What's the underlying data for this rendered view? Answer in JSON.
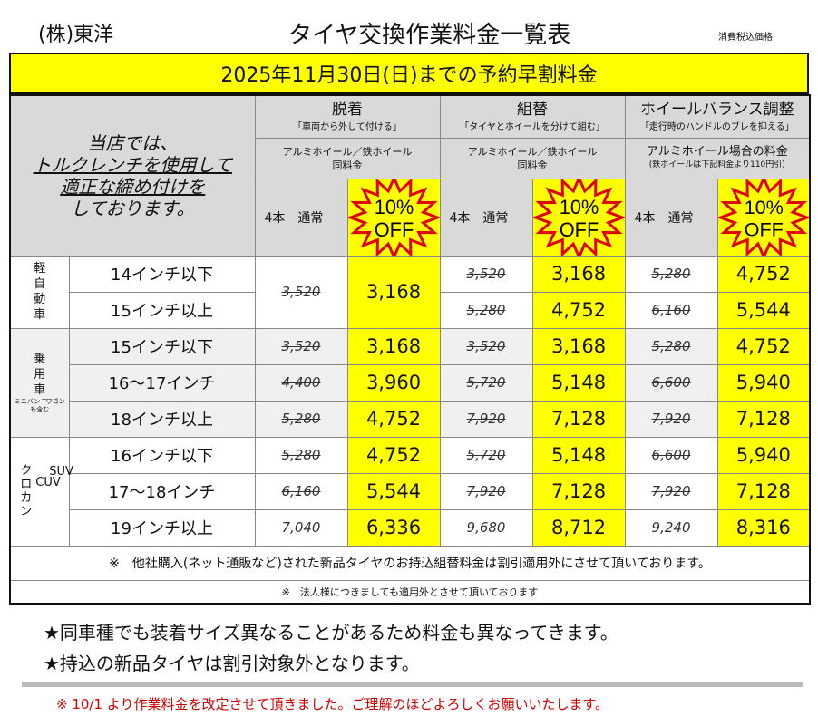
{
  "header": {
    "company": "(株)東洋",
    "title": "タイヤ交換作業料金一覧表",
    "tax_note": "消費税込価格"
  },
  "banner": "2025年11月30日(日)までの予約早割料金",
  "left_note": {
    "line1": "当店では、",
    "line2": "トルクレンチを使用して",
    "line3": "適正な締め付けを",
    "line4": "しております。"
  },
  "groups": [
    {
      "name": "脱着",
      "desc": "「車両から外して付ける」",
      "wheel": "アルミホイール／鉄ホイール",
      "wheel2": "同料金",
      "normal": "4本　通常",
      "off1": "10%",
      "off2": "OFF"
    },
    {
      "name": "組替",
      "desc": "「タイヤとホイールを分けて組む」",
      "wheel": "アルミホイール／鉄ホイール",
      "wheel2": "同料金",
      "normal": "4本　通常",
      "off1": "10%",
      "off2": "OFF"
    },
    {
      "name": "ホイールバランス調整",
      "desc": "「走行時のハンドルのブレを抑える」",
      "wheel": "アルミホイール場合の料金",
      "wheel2": "(鉄ホイールは下記料金より110円引)",
      "normal": "4本　通常",
      "off1": "10%",
      "off2": "OFF"
    }
  ],
  "categories": {
    "kei": "軽自動車",
    "passenger": "乗用車",
    "passenger_note": "ミニバン Tワゴン も含む",
    "suv1": "クロカン",
    "suv2": "CUV",
    "suv3": "SUV"
  },
  "rows": [
    {
      "size": "14インチ以下",
      "p": [
        [
          "3,520",
          "3,168"
        ],
        [
          "3,520",
          "3,168"
        ],
        [
          "5,280",
          "4,752"
        ]
      ]
    },
    {
      "size": "15インチ以上",
      "p": [
        [
          "3,520",
          "3,168"
        ],
        [
          "5,280",
          "4,752"
        ],
        [
          "6,160",
          "5,544"
        ]
      ]
    },
    {
      "size": "15インチ以下",
      "p": [
        [
          "3,520",
          "3,168"
        ],
        [
          "3,520",
          "3,168"
        ],
        [
          "5,280",
          "4,752"
        ]
      ]
    },
    {
      "size": "16〜17インチ",
      "p": [
        [
          "4,400",
          "3,960"
        ],
        [
          "5,720",
          "5,148"
        ],
        [
          "6,600",
          "5,940"
        ]
      ]
    },
    {
      "size": "18インチ以上",
      "p": [
        [
          "5,280",
          "4,752"
        ],
        [
          "7,920",
          "7,128"
        ],
        [
          "7,920",
          "7,128"
        ]
      ]
    },
    {
      "size": "16インチ以下",
      "p": [
        [
          "5,280",
          "4,752"
        ],
        [
          "5,720",
          "5,148"
        ],
        [
          "6,600",
          "5,940"
        ]
      ]
    },
    {
      "size": "17〜18インチ",
      "p": [
        [
          "6,160",
          "5,544"
        ],
        [
          "7,920",
          "7,128"
        ],
        [
          "7,920",
          "7,128"
        ]
      ]
    },
    {
      "size": "19インチ以上",
      "p": [
        [
          "7,040",
          "6,336"
        ],
        [
          "9,680",
          "8,712"
        ],
        [
          "9,240",
          "8,316"
        ]
      ]
    }
  ],
  "notes": {
    "n1": "※　他社購入(ネット通販など)された新品タイヤのお持込組替料金は割引適用外にさせて頂いております。",
    "n2": "※　法人様につきましても適用外とさせて頂いております"
  },
  "footer": {
    "s1": "★同車種でも装着サイズ異なることがあるため料金も異なってきます。",
    "s2": "★持込の新品タイヤは割引対象外となります。",
    "revision": "※ 10/1 より作業料金を改定させて頂きました。ご理解のほどよろしくお願いいたします。"
  }
}
